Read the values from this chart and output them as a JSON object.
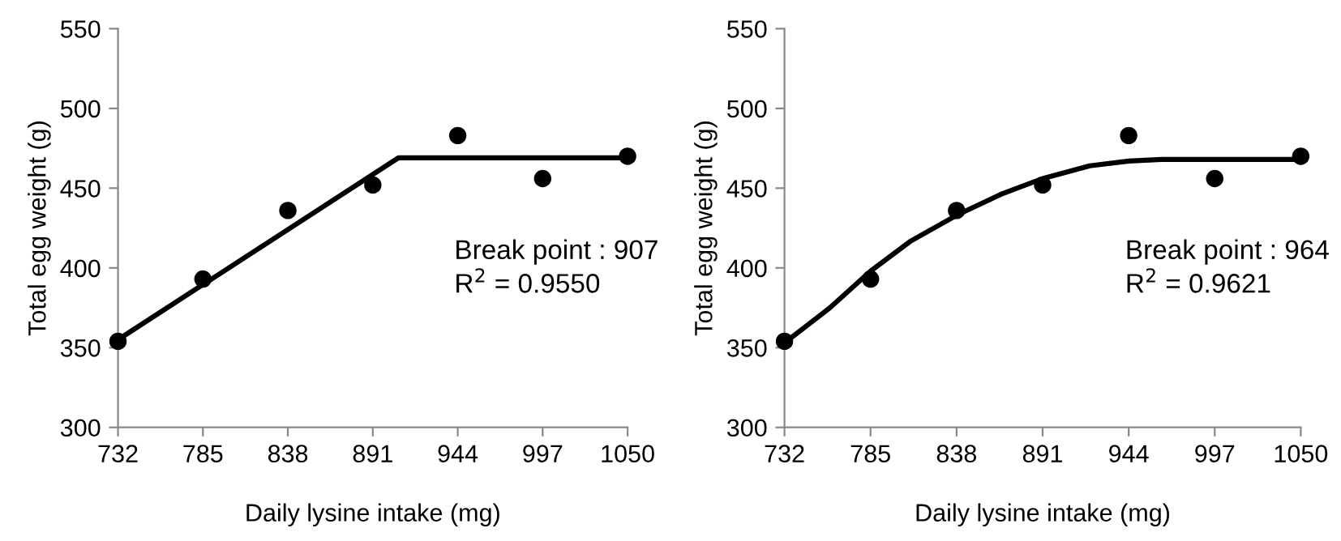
{
  "chart_data": [
    {
      "type": "scatter",
      "xlabel": "Daily lysine intake (mg)",
      "ylabel": "Total egg weight (g)",
      "xlim": [
        732,
        1050
      ],
      "ylim": [
        300,
        550
      ],
      "xticks": [
        732,
        785,
        838,
        891,
        944,
        997,
        1050
      ],
      "yticks": [
        300,
        350,
        400,
        450,
        500,
        550
      ],
      "grid": false,
      "legend": false,
      "annotations": [
        "Break point : 907",
        "R$^{2}$ = 0.9550"
      ],
      "series": [
        {
          "color": "#000000",
          "marker": "circle",
          "x": [
            732,
            785,
            838,
            891,
            944,
            997,
            1050
          ],
          "values": [
            354,
            393,
            436,
            452,
            483,
            456,
            470
          ]
        },
        {
          "type": "line",
          "color": "#000000",
          "marker": "none",
          "line_style": "solid",
          "x": [
            732,
            907,
            1050
          ],
          "values": [
            355,
            469,
            469
          ]
        }
      ]
    },
    {
      "type": "scatter",
      "xlabel": "Daily lysine intake (mg)",
      "ylabel": "Total egg weight (g)",
      "xlim": [
        732,
        1050
      ],
      "ylim": [
        300,
        550
      ],
      "xticks": [
        732,
        785,
        838,
        891,
        944,
        997,
        1050
      ],
      "yticks": [
        300,
        350,
        400,
        450,
        500,
        550
      ],
      "grid": false,
      "legend": false,
      "annotations": [
        "Break point : 964",
        "R$^{2}$ = 0.9621"
      ],
      "series": [
        {
          "color": "#000000",
          "marker": "circle",
          "x": [
            732,
            785,
            838,
            891,
            944,
            997,
            1050
          ],
          "values": [
            354,
            393,
            436,
            452,
            483,
            456,
            470
          ]
        },
        {
          "type": "line",
          "color": "#000000",
          "marker": "none",
          "line_style": "solid",
          "x": [
            732,
            760,
            785,
            810,
            838,
            865,
            891,
            920,
            944,
            964,
            1050
          ],
          "values": [
            353,
            375,
            398,
            417,
            433,
            446,
            456,
            464,
            467,
            468,
            468
          ]
        }
      ]
    }
  ]
}
